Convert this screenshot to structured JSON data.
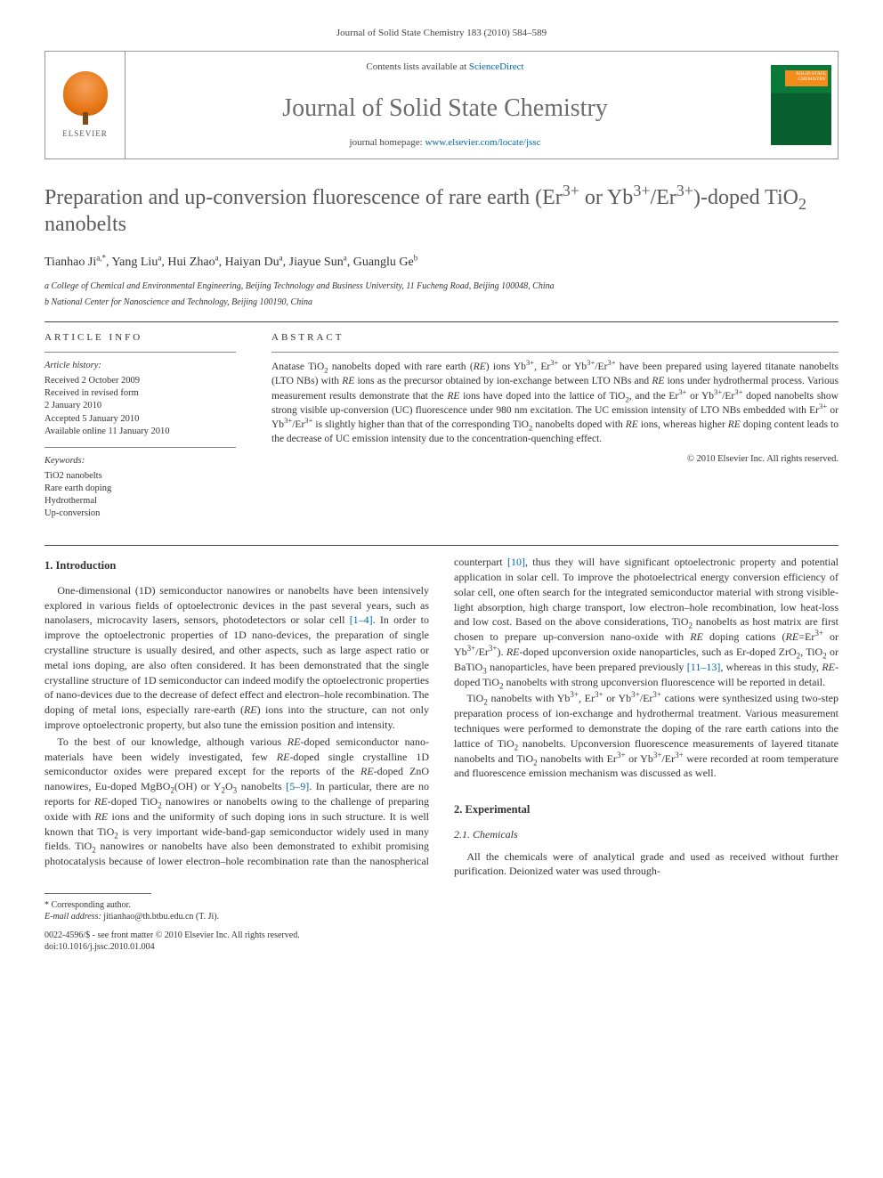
{
  "journal_ref": "Journal of Solid State Chemistry 183 (2010) 584–589",
  "header": {
    "contents_prefix": "Contents lists available at ",
    "contents_link": "ScienceDirect",
    "journal_name": "Journal of Solid State Chemistry",
    "homepage_prefix": "journal homepage: ",
    "homepage_link": "www.elsevier.com/locate/jssc",
    "publisher": "ELSEVIER",
    "cover_text": "SOLID STATE CHEMISTRY"
  },
  "title_html": "Preparation and up-conversion fluorescence of rare earth (Er<sup>3+</sup> or Yb<sup>3+</sup>/Er<sup>3+</sup>)-doped TiO<sub>2</sub> nanobelts",
  "authors_html": "Tianhao Ji<sup>a,*</sup>, Yang Liu<sup>a</sup>, Hui Zhao<sup>a</sup>, Haiyan Du<sup>a</sup>, Jiayue Sun<sup>a</sup>, Guanglu Ge<sup>b</sup>",
  "affiliations": [
    "a College of Chemical and Environmental Engineering, Beijing Technology and Business University, 11 Fucheng Road, Beijing 100048, China",
    "b National Center for Nanoscience and Technology, Beijing 100190, China"
  ],
  "article_info": {
    "head": "ARTICLE INFO",
    "history_label": "Article history:",
    "history": "Received 2 October 2009\nReceived in revised form\n2 January 2010\nAccepted 5 January 2010\nAvailable online 11 January 2010",
    "keywords_label": "Keywords:",
    "keywords": "TiO2 nanobelts\nRare earth doping\nHydrothermal\nUp-conversion"
  },
  "abstract": {
    "head": "ABSTRACT",
    "text_html": "Anatase TiO<sub>2</sub> nanobelts doped with rare earth (<i>RE</i>) ions Yb<sup>3+</sup>, Er<sup>3+</sup> or Yb<sup>3+</sup>/Er<sup>3+</sup> have been prepared using layered titanate nanobelts (LTO NBs) with <i>RE</i> ions as the precursor obtained by ion-exchange between LTO NBs and <i>RE</i> ions under hydrothermal process. Various measurement results demonstrate that the <i>RE</i> ions have doped into the lattice of TiO<sub>2</sub>, and the Er<sup>3+</sup> or Yb<sup>3+</sup>/Er<sup>3+</sup> doped nanobelts show strong visible up-conversion (UC) fluorescence under 980 nm excitation. The UC emission intensity of LTO NBs embedded with Er<sup>3+</sup> or Yb<sup>3+</sup>/Er<sup>3+</sup> is slightly higher than that of the corresponding TiO<sub>2</sub> nanobelts doped with <i>RE</i> ions, whereas higher <i>RE</i> doping content leads to the decrease of UC emission intensity due to the concentration-quenching effect.",
    "copyright": "© 2010 Elsevier Inc. All rights reserved."
  },
  "sections": {
    "intro_head": "1. Introduction",
    "intro_p1_html": "One-dimensional (1D) semiconductor nanowires or nanobelts have been intensively explored in various fields of optoelectronic devices in the past several years, such as nanolasers, microcavity lasers, sensors, photodetectors or solar cell <span class=\"ref\">[1–4]</span>. In order to improve the optoelectronic properties of 1D nano-devices, the preparation of single crystalline structure is usually desired, and other aspects, such as large aspect ratio or metal ions doping, are also often considered. It has been demonstrated that the single crystalline structure of 1D semiconductor can indeed modify the optoelectronic properties of nano-devices due to the decrease of defect effect and electron–hole recombination. The doping of metal ions, especially rare-earth (<i>RE</i>) ions into the structure, can not only improve optoelectronic property, but also tune the emission position and intensity.",
    "intro_p2_html": "To the best of our knowledge, although various <i>RE</i>-doped semiconductor nano-materials have been widely investigated, few <i>RE</i>-doped single crystalline 1D semiconductor oxides were prepared except for the reports of the <i>RE</i>-doped ZnO nanowires, Eu-doped MgBO<sub>2</sub>(OH) or Y<sub>2</sub>O<sub>3</sub> nanobelts <span class=\"ref\">[5–9]</span>. In particular, there are no reports for <i>RE</i>-doped TiO<sub>2</sub> nanowires or nanobelts owing to the challenge of preparing oxide with <i>RE</i> ions and the uniformity of such doping ions in such structure. It is well known that TiO<sub>2</sub> is very important wide-band-gap semiconductor widely used in many fields. TiO<sub>2</sub> nanowires or nanobelts have also been demonstrated to exhibit promising photocatalysis because of lower electron–hole recombination rate than the nanospherical counterpart <span class=\"ref\">[10]</span>, thus they will have significant optoelectronic property and potential application in solar cell. To improve the photoelectrical energy conversion efficiency of solar cell, one often search for the integrated semiconductor material with strong visible-light absorption, high charge transport, low electron–hole recombination, low heat-loss and low cost. Based on the above considerations, TiO<sub>2</sub> nanobelts as host matrix are first chosen to prepare up-conversion nano-oxide with <i>RE</i> doping cations (<i>RE</i>=Er<sup>3+</sup> or Yb<sup>3+</sup>/Er<sup>3+</sup>). <i>RE</i>-doped upconversion oxide nanoparticles, such as Er-doped ZrO<sub>2</sub>, TiO<sub>2</sub> or BaTiO<sub>3</sub> nanoparticles, have been prepared previously <span class=\"ref\">[11–13]</span>, whereas in this study, <i>RE</i>-doped TiO<sub>2</sub> nanobelts with strong upconversion fluorescence will be reported in detail.",
    "intro_p3_html": "TiO<sub>2</sub> nanobelts with Yb<sup>3+</sup>, Er<sup>3+</sup> or Yb<sup>3+</sup>/Er<sup>3+</sup> cations were synthesized using two-step preparation process of ion-exchange and hydrothermal treatment. Various measurement techniques were performed to demonstrate the doping of the rare earth cations into the lattice of TiO<sub>2</sub> nanobelts. Upconversion fluorescence measurements of layered titanate nanobelts and TiO<sub>2</sub> nanobelts with Er<sup>3+</sup> or Yb<sup>3+</sup>/Er<sup>3+</sup> were recorded at room temperature and fluorescence emission mechanism was discussed as well.",
    "exp_head": "2. Experimental",
    "chem_subhead": "2.1. Chemicals",
    "chem_p1": "All the chemicals were of analytical grade and used as received without further purification. Deionized water was used through-"
  },
  "footer": {
    "corr_label": "* Corresponding author.",
    "email_label": "E-mail address:",
    "email": "jitianhao@th.btbu.edu.cn (T. Ji).",
    "issn": "0022-4596/$ - see front matter © 2010 Elsevier Inc. All rights reserved.",
    "doi": "doi:10.1016/j.jssc.2010.01.004"
  },
  "colors": {
    "link": "#0066aa",
    "title_gray": "#5a5a5a",
    "text": "#333333",
    "rule": "#444444"
  }
}
